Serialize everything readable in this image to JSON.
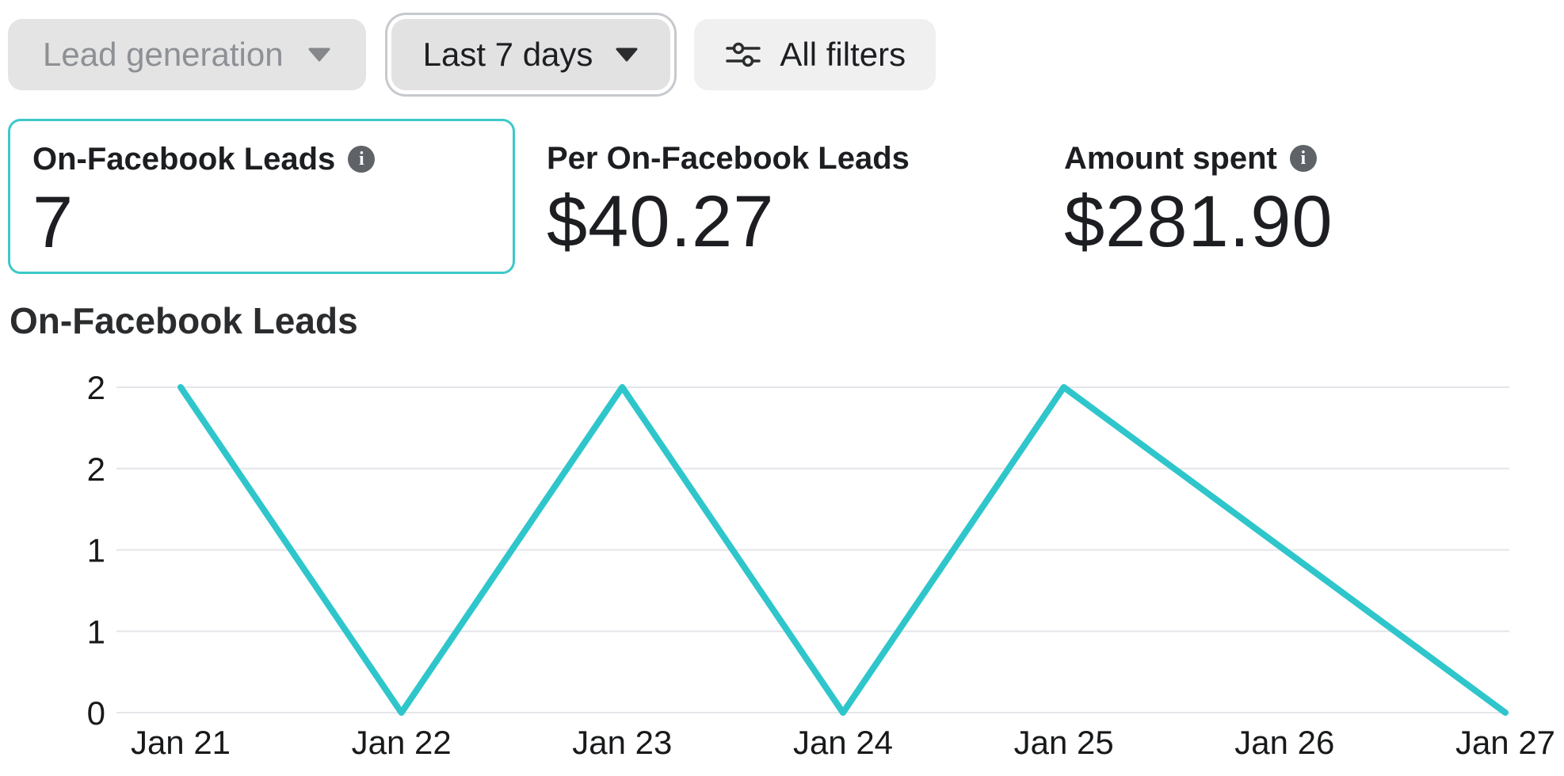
{
  "toolbar": {
    "objective_dropdown": {
      "label": "Lead generation",
      "state": "disabled"
    },
    "date_range_dropdown": {
      "label": "Last 7 days",
      "state": "focused"
    },
    "all_filters_button": {
      "label": "All filters"
    }
  },
  "metrics": [
    {
      "label": "On-Facebook Leads",
      "value": "7",
      "has_info_icon": true,
      "selected": true
    },
    {
      "label": "Per On-Facebook Leads",
      "value": "$40.27",
      "has_info_icon": false,
      "selected": false
    },
    {
      "label": "Amount spent",
      "value": "$281.90",
      "has_info_icon": true,
      "selected": false
    }
  ],
  "chart_section": {
    "title": "On-Facebook Leads"
  },
  "chart_data": {
    "type": "line",
    "title": "On-Facebook Leads",
    "x": [
      "Jan 21",
      "Jan 22",
      "Jan 23",
      "Jan 24",
      "Jan 25",
      "Jan 26",
      "Jan 27"
    ],
    "series": [
      {
        "name": "On-Facebook Leads",
        "values": [
          2,
          0,
          2,
          0,
          2,
          1,
          0
        ]
      }
    ],
    "ylim": [
      0,
      2
    ],
    "y_ticks": [
      {
        "value": 2,
        "label": "2"
      },
      {
        "value": 1.5,
        "label": "2"
      },
      {
        "value": 1,
        "label": "1"
      },
      {
        "value": 0.5,
        "label": "1"
      },
      {
        "value": 0,
        "label": "0"
      }
    ],
    "grid": "horizontal-only",
    "legend": "none",
    "xlabel": "",
    "ylabel": ""
  },
  "colors": {
    "accent_teal": "#2fc6cb",
    "selected_card_border": "#3ec8c9",
    "gridline": "#e4e6ea",
    "text_dark": "#1c1e21",
    "text_disabled": "#8d9095",
    "info_icon_bg": "#5f6368"
  },
  "icons": {
    "caret_down": "chevron-down",
    "filters": "sliders",
    "info": "info-circle"
  }
}
